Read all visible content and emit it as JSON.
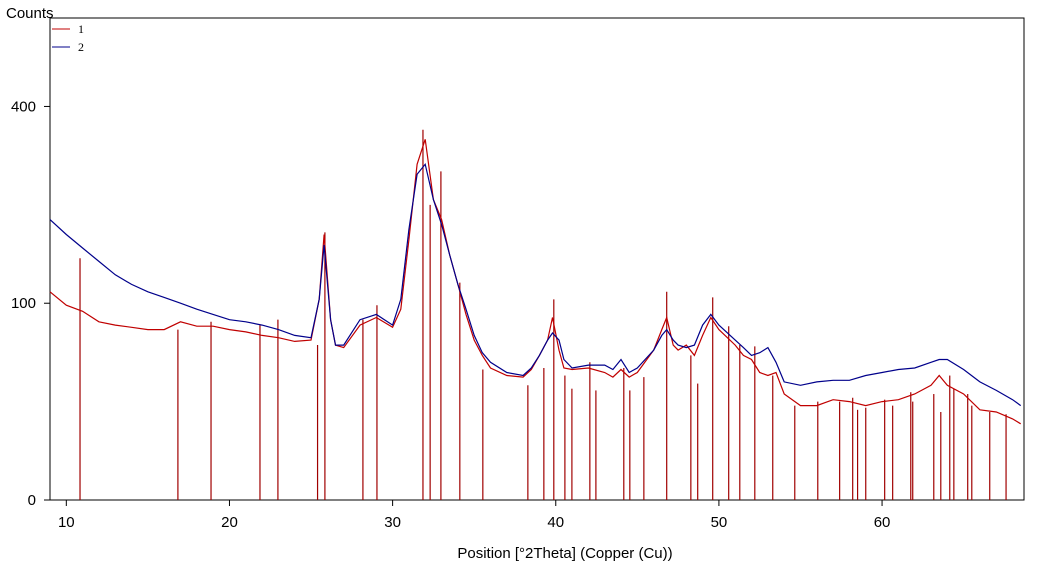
{
  "chart_data": {
    "type": "line",
    "title": "Counts",
    "x_label": "Position [°2Theta] (Copper (Cu))",
    "y_scale": "sqrt",
    "xlim": [
      9,
      68.7
    ],
    "xticks": [
      10,
      20,
      30,
      40,
      50,
      60
    ],
    "ylim": [
      0,
      600
    ],
    "yticks": [
      0,
      100,
      400
    ],
    "x": [
      9,
      10,
      11,
      12,
      13,
      14,
      15,
      16,
      17,
      18,
      19,
      20,
      21,
      22,
      23,
      24,
      25,
      25.5,
      25.8,
      26.2,
      26.5,
      27,
      28,
      29,
      30,
      30.5,
      31,
      31.5,
      32,
      32.5,
      33,
      33.5,
      34,
      34.5,
      35,
      35.5,
      36,
      37,
      38,
      38.5,
      39,
      39.5,
      39.8,
      40.2,
      40.5,
      41,
      42,
      43,
      43.5,
      44,
      44.5,
      45,
      46,
      46.5,
      46.8,
      47.2,
      47.5,
      48,
      48.5,
      49,
      49.5,
      50,
      51,
      51.5,
      52,
      52.5,
      53,
      53.5,
      54,
      55,
      56,
      57,
      58,
      59,
      60,
      61,
      62,
      63,
      63.5,
      64,
      65,
      66,
      67,
      68,
      68.5
    ],
    "series": [
      {
        "name": "1",
        "color": "#c00000",
        "values": [
          112,
          98,
          92,
          82,
          79,
          77,
          75,
          75,
          82,
          78,
          78,
          75,
          73,
          70,
          68,
          65,
          66,
          104,
          182,
          84,
          62,
          60,
          79,
          86,
          77,
          94,
          175,
          291,
          336,
          233,
          203,
          155,
          120,
          89,
          66,
          54,
          45,
          40,
          39,
          44,
          54,
          66,
          86,
          58,
          45,
          44,
          45,
          42,
          39,
          44,
          39,
          42,
          58,
          75,
          86,
          62,
          58,
          62,
          54,
          70,
          86,
          75,
          62,
          54,
          51,
          42,
          40,
          42,
          29,
          23,
          23,
          26,
          25,
          23,
          25,
          26,
          29,
          34,
          40,
          34,
          29,
          21,
          20,
          17,
          15
        ]
      },
      {
        "name": "2",
        "color": "#00008b",
        "values": [
          203,
          182,
          164,
          147,
          131,
          120,
          112,
          106,
          100,
          94,
          89,
          84,
          82,
          79,
          75,
          70,
          68,
          104,
          168,
          84,
          62,
          62,
          84,
          89,
          79,
          104,
          189,
          274,
          291,
          233,
          196,
          155,
          120,
          94,
          70,
          56,
          49,
          42,
          40,
          45,
          54,
          66,
          72,
          66,
          51,
          45,
          47,
          47,
          44,
          51,
          42,
          45,
          58,
          70,
          75,
          66,
          62,
          60,
          62,
          79,
          89,
          79,
          66,
          60,
          54,
          56,
          60,
          49,
          36,
          34,
          36,
          37,
          37,
          40,
          42,
          44,
          45,
          49,
          51,
          51,
          44,
          36,
          31,
          26,
          23
        ]
      }
    ],
    "reference_lines": {
      "color": "#a00000",
      "x": [
        10.84,
        16.84,
        18.87,
        21.87,
        22.97,
        25.4,
        25.85,
        28.18,
        29.04,
        31.86,
        32.3,
        32.96,
        34.12,
        35.53,
        38.29,
        39.27,
        39.88,
        40.56,
        40.99,
        42.09,
        42.46,
        44.17,
        44.54,
        45.4,
        46.8,
        48.28,
        48.7,
        49.62,
        50.6,
        51.28,
        52.2,
        53.3,
        54.65,
        56.06,
        57.4,
        58.2,
        58.5,
        59.0,
        60.16,
        60.65,
        61.76,
        61.88,
        63.17,
        63.6,
        64.15,
        64.4,
        65.25,
        65.5,
        66.6,
        67.6
      ],
      "values": [
        151,
        75,
        82,
        79,
        84,
        62,
        185,
        84,
        98,
        354,
        225,
        279,
        122,
        44,
        34,
        45,
        104,
        40,
        32,
        49,
        31,
        45,
        31,
        39,
        112,
        54,
        35,
        106,
        78,
        62,
        61,
        40,
        23,
        25,
        25,
        27,
        21,
        22,
        26,
        23,
        30,
        25,
        29,
        20,
        40,
        32,
        29,
        23,
        20,
        19
      ]
    }
  }
}
